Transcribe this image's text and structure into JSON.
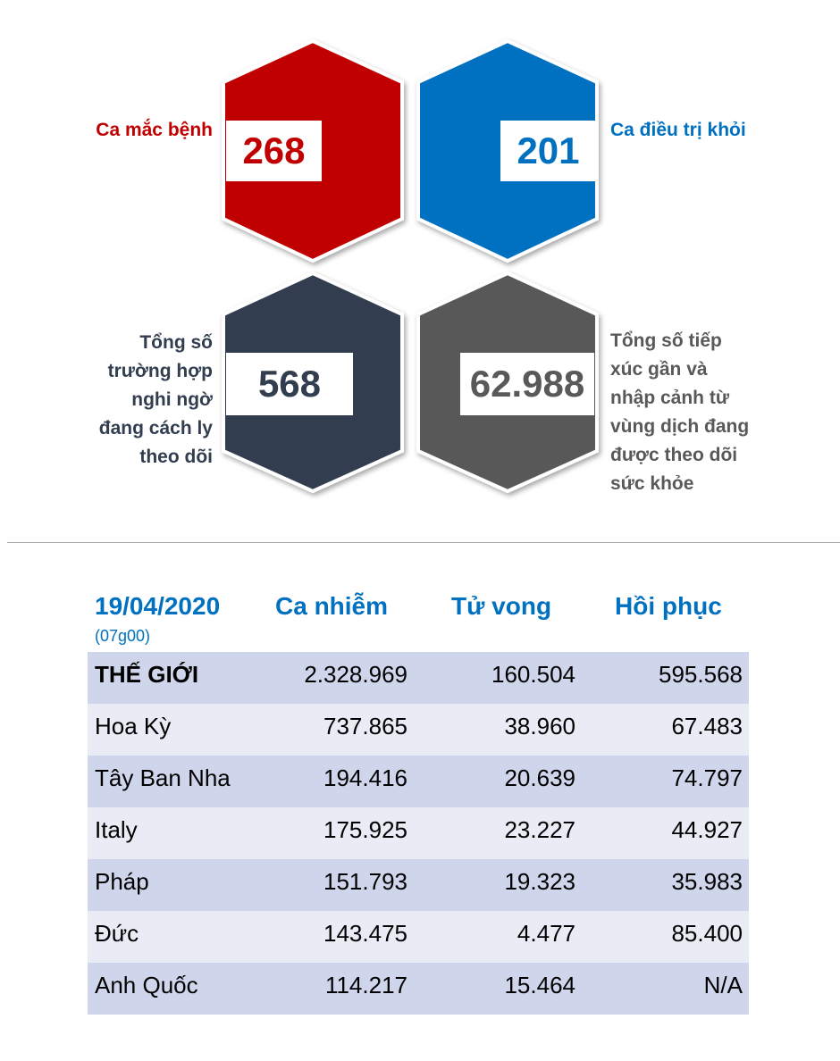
{
  "stats": {
    "cases": {
      "value": "268",
      "label": "Ca mắc bệnh",
      "color": "#c00000"
    },
    "recovered": {
      "value": "201",
      "label": "Ca điều trị khỏi",
      "color": "#0070c0"
    },
    "suspected": {
      "value": "568",
      "label_lines": [
        "Tổng số",
        "trường hợp",
        "nghi ngờ",
        "đang cách ly",
        "theo dõi"
      ],
      "color": "#323e4f"
    },
    "monitored": {
      "value": "62.988",
      "label_lines": [
        "Tổng số tiếp",
        "xúc gần và",
        "nhập cảnh từ",
        "vùng dịch đang",
        "được theo dõi",
        "sức khỏe"
      ],
      "color": "#595959"
    }
  },
  "table": {
    "date": "19/04/2020",
    "time": "(07g00)",
    "headers": [
      "Ca nhiễm",
      "Tử vong",
      "Hồi phục"
    ],
    "rows": [
      {
        "name": "THẾ GIỚI",
        "infected": "2.328.969",
        "deaths": "160.504",
        "recovered": "595.568"
      },
      {
        "name": "Hoa Kỳ",
        "infected": "737.865",
        "deaths": "38.960",
        "recovered": "67.483"
      },
      {
        "name": "Tây Ban Nha",
        "infected": "194.416",
        "deaths": "20.639",
        "recovered": "74.797"
      },
      {
        "name": "Italy",
        "infected": "175.925",
        "deaths": "23.227",
        "recovered": "44.927"
      },
      {
        "name": "Pháp",
        "infected": "151.793",
        "deaths": "19.323",
        "recovered": "35.983"
      },
      {
        "name": "Đức",
        "infected": "143.475",
        "deaths": "4.477",
        "recovered": "85.400"
      },
      {
        "name": "Anh Quốc",
        "infected": "114.217",
        "deaths": "15.464",
        "recovered": "N/A"
      }
    ]
  }
}
